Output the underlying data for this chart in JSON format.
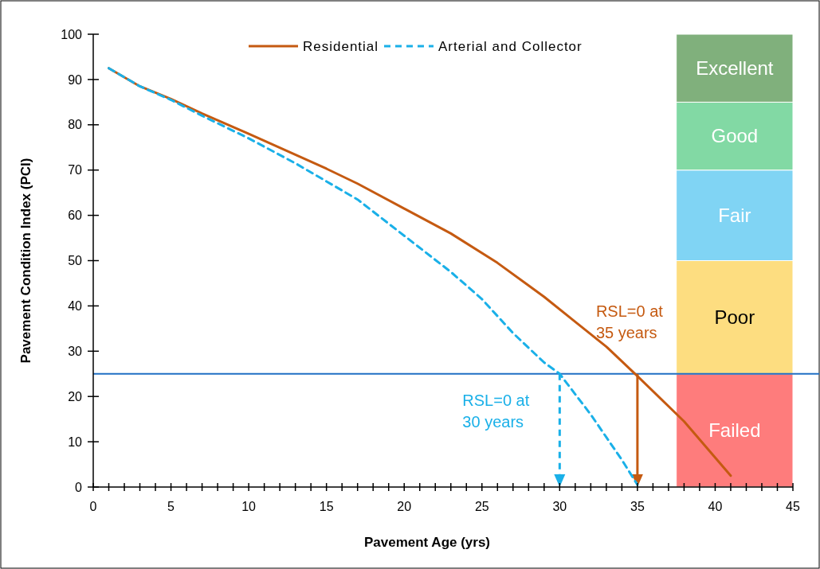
{
  "chart_data": {
    "type": "line",
    "xlabel": "Pavement Age (yrs)",
    "ylabel": "Pavement Condition Index (PCI)",
    "xlim": [
      0,
      45
    ],
    "ylim": [
      0,
      100
    ],
    "xticks": [
      0,
      {
        "value": 1,
        "label": null
      },
      {
        "value": 2,
        "label": null
      },
      {
        "value": 3,
        "label": null
      },
      {
        "value": 4,
        "label": null
      },
      5,
      {
        "value": 6,
        "label": null
      },
      {
        "value": 7,
        "label": null
      },
      {
        "value": 8,
        "label": null
      },
      {
        "value": 9,
        "label": null
      },
      10,
      {
        "value": 11,
        "label": null
      },
      {
        "value": 12,
        "label": null
      },
      {
        "value": 13,
        "label": null
      },
      {
        "value": 14,
        "label": null
      },
      15,
      {
        "value": 16,
        "label": null
      },
      {
        "value": 17,
        "label": null
      },
      {
        "value": 18,
        "label": null
      },
      {
        "value": 19,
        "label": null
      },
      20,
      {
        "value": 21,
        "label": null
      },
      {
        "value": 22,
        "label": null
      },
      {
        "value": 23,
        "label": null
      },
      {
        "value": 24,
        "label": null
      },
      25,
      {
        "value": 26,
        "label": null
      },
      {
        "value": 27,
        "label": null
      },
      {
        "value": 28,
        "label": null
      },
      {
        "value": 29,
        "label": null
      },
      30,
      {
        "value": 31,
        "label": null
      },
      {
        "value": 32,
        "label": null
      },
      {
        "value": 33,
        "label": null
      },
      {
        "value": 34,
        "label": null
      },
      35,
      {
        "value": 36,
        "label": null
      },
      {
        "value": 37,
        "label": null
      },
      {
        "value": 38,
        "label": null
      },
      {
        "value": 39,
        "label": null
      },
      40,
      {
        "value": 41,
        "label": null
      },
      {
        "value": 42,
        "label": null
      },
      {
        "value": 43,
        "label": null
      },
      {
        "value": 44,
        "label": null
      },
      45
    ],
    "yticks": [
      0,
      10,
      20,
      30,
      40,
      50,
      60,
      70,
      80,
      90,
      100
    ],
    "grid": false,
    "legend": "top",
    "marker": "none",
    "series": [
      {
        "name": "Residential",
        "color": "#c55a11",
        "line_style": "solid",
        "x": [
          1,
          3,
          5,
          7,
          10,
          15,
          17,
          20,
          23,
          26,
          28,
          29,
          31,
          33,
          35,
          38,
          41
        ],
        "values": [
          92.5,
          88.5,
          85.7,
          82.5,
          78,
          70.3,
          67,
          61.5,
          56,
          49.5,
          44.5,
          42,
          36.5,
          31,
          24.5,
          14.5,
          2.5
        ]
      },
      {
        "name": "Arterial and Collector",
        "color": "#1ab0e8",
        "line_style": "dashed",
        "x": [
          1,
          3,
          5,
          7,
          10,
          13,
          15,
          17,
          20,
          23,
          25,
          27,
          29,
          30,
          32,
          34,
          35
        ],
        "values": [
          92.5,
          88.5,
          85.5,
          82,
          77,
          71.5,
          67.5,
          63.5,
          55.5,
          47.5,
          41.5,
          34,
          27.5,
          25,
          16,
          6,
          0.5
        ]
      }
    ],
    "ref_lines": [
      {
        "axis": "y",
        "value": 25,
        "color": "#1f6fc4",
        "line_style": "solid"
      }
    ],
    "bands": [
      {
        "axis": "y",
        "from": 0,
        "to": 25,
        "label": "Failed",
        "color": "#fe7c7c"
      },
      {
        "axis": "y",
        "from": 25,
        "to": 50,
        "label": "Poor",
        "color": "#fddd80"
      },
      {
        "axis": "y",
        "from": 50,
        "to": 70,
        "label": "Fair",
        "color": "#80d4f4"
      },
      {
        "axis": "y",
        "from": 70,
        "to": 85,
        "label": "Good",
        "color": "#82d9a4"
      },
      {
        "axis": "y",
        "from": 85,
        "to": 100,
        "label": "Excellent",
        "color": "#80b07c"
      }
    ],
    "annotations": [
      {
        "text": "RSL=0 at\n35 years",
        "x": 35,
        "y": 25
      },
      {
        "text": "RSL=0 at\n30 years",
        "x": 30,
        "y": 25
      }
    ]
  }
}
